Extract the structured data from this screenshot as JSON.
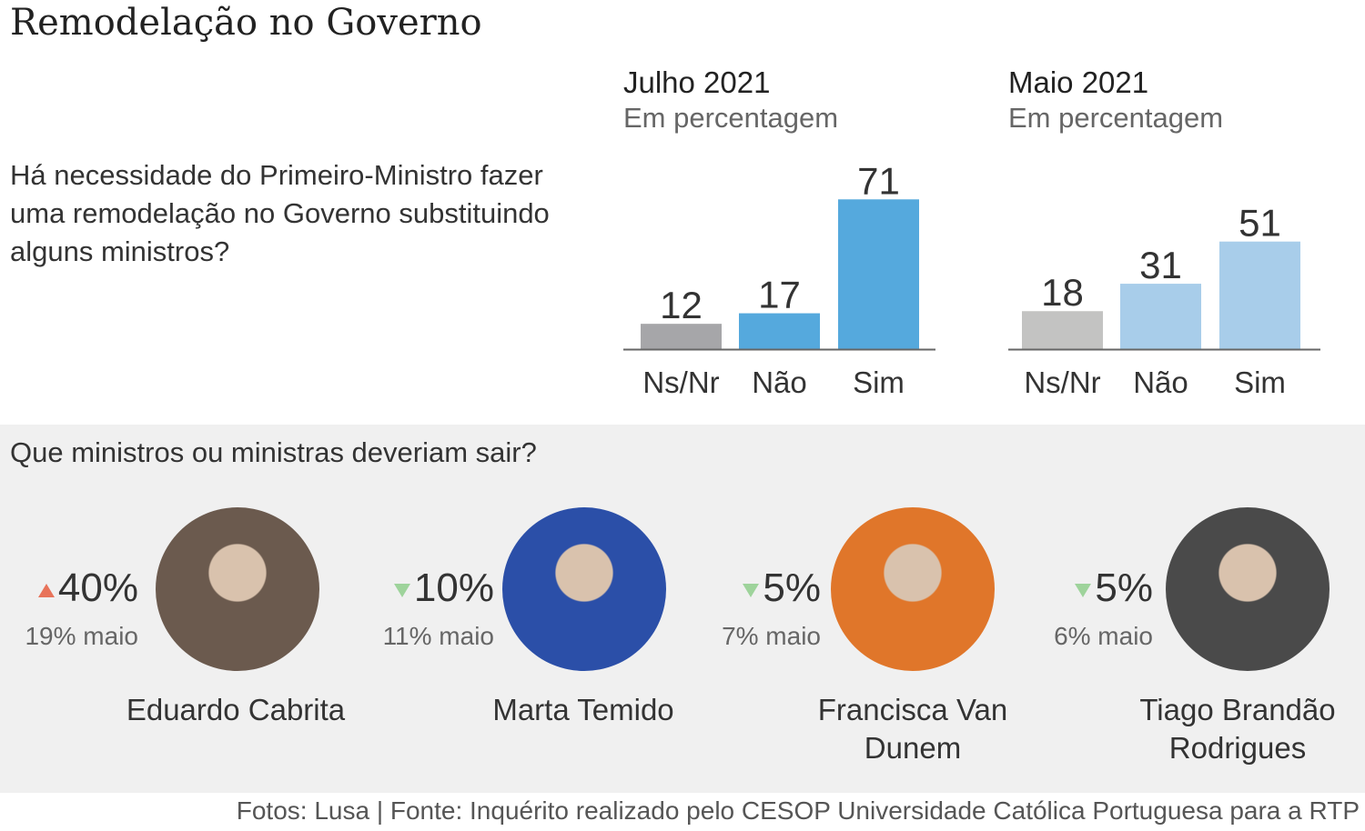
{
  "title": "Remodelação no Governo",
  "question": "Há necessidade do Primeiro-Ministro fazer uma remodelação no Governo substituindo alguns ministros?",
  "chart_data": [
    {
      "type": "bar",
      "title": "Julho 2021",
      "subtitle": "Em percentagem",
      "categories": [
        "Ns/Nr",
        "Não",
        "Sim"
      ],
      "values": [
        12,
        17,
        71
      ],
      "colors": [
        "#a6a6a9",
        "#55a9dd",
        "#55a9dd"
      ]
    },
    {
      "type": "bar",
      "title": "Maio 2021",
      "subtitle": "Em percentagem",
      "categories": [
        "Ns/Nr",
        "Não",
        "Sim"
      ],
      "values": [
        18,
        31,
        51
      ],
      "colors": [
        "#c3c3c2",
        "#a8cdea",
        "#a8cdea"
      ]
    }
  ],
  "ministers_question": "Que ministros ou ministras deveriam sair?",
  "ministers": [
    {
      "name": "Eduardo Cabrita",
      "pct": "40%",
      "trend": "up",
      "may": "19% maio",
      "photo_color": "#6b5a4e"
    },
    {
      "name": "Marta Temido",
      "pct": "10%",
      "trend": "down",
      "may": "11% maio",
      "photo_color": "#2b4fa8"
    },
    {
      "name": "Francisca Van Dunem",
      "pct": "5%",
      "trend": "down",
      "may": "7% maio",
      "photo_color": "#e0762a"
    },
    {
      "name": "Tiago Brandão Rodrigues",
      "pct": "5%",
      "trend": "down",
      "may": "6% maio",
      "photo_color": "#4a4a4a"
    }
  ],
  "footer": "Fotos: Lusa | Fonte: Inquérito realizado pelo CESOP Universidade Católica Portuguesa para a RTP"
}
